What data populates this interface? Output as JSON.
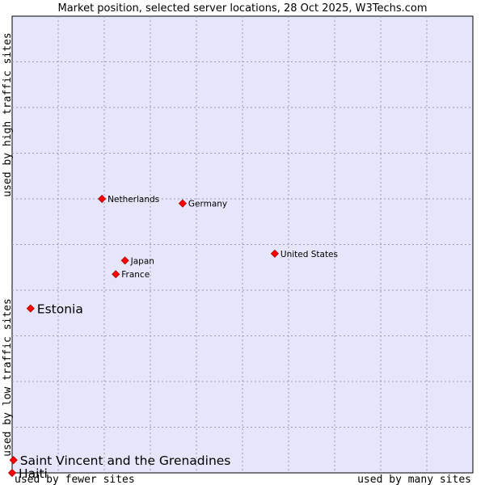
{
  "chart_data": {
    "type": "scatter",
    "title": "Market position, selected server locations, 28 Oct 2025, W3Techs.com",
    "xlabel_left": "used by fewer sites",
    "xlabel_right": "used by many sites",
    "ylabel_top": "used by high traffic sites",
    "ylabel_bottom": "used by low traffic sites",
    "xlim": [
      0,
      10
    ],
    "ylim": [
      0,
      10
    ],
    "grid": true,
    "colors": {
      "plot_bg": "#e6e6fa",
      "marker": "#ff0000",
      "marker_stroke": "#aa0000",
      "grid": "#9a9ab0"
    },
    "points": [
      {
        "label": "Netherlands",
        "x": 1.95,
        "y": 6.0,
        "emphasis": false
      },
      {
        "label": "Germany",
        "x": 3.7,
        "y": 5.9,
        "emphasis": false
      },
      {
        "label": "United States",
        "x": 5.7,
        "y": 4.8,
        "emphasis": false
      },
      {
        "label": "Japan",
        "x": 2.45,
        "y": 4.65,
        "emphasis": false
      },
      {
        "label": "France",
        "x": 2.25,
        "y": 4.35,
        "emphasis": false
      },
      {
        "label": "Estonia",
        "x": 0.4,
        "y": 3.6,
        "emphasis": true
      },
      {
        "label": "Saint Vincent and the Grenadines",
        "x": 0.03,
        "y": 0.28,
        "emphasis": true
      },
      {
        "label": "Haiti",
        "x": 0.0,
        "y": 0.0,
        "emphasis": true
      }
    ]
  }
}
